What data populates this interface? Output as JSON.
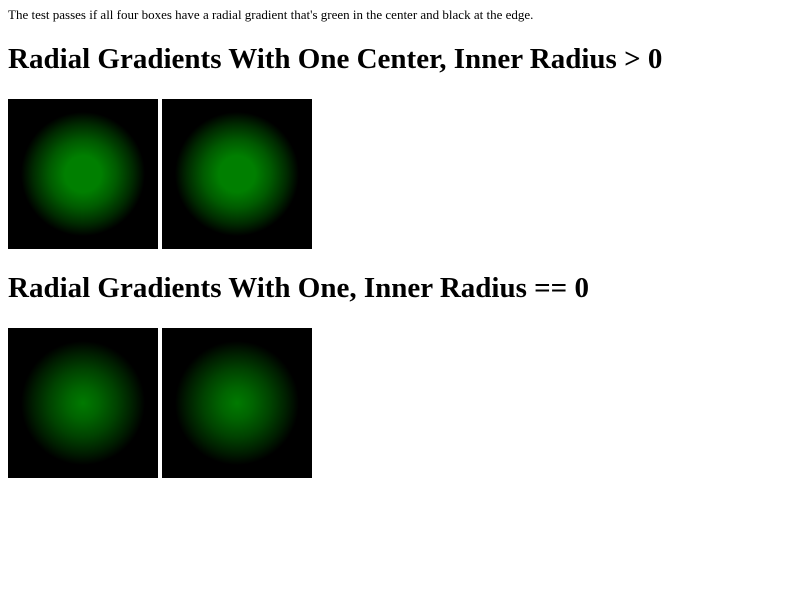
{
  "intro_text": "The test passes if all four boxes have a radial gradient that's green in the center and black at the edge.",
  "sections": [
    {
      "heading": "Radial Gradients With One Center, Inner Radius > 0"
    },
    {
      "heading": "Radial Gradients With One, Inner Radius == 0"
    }
  ],
  "colors": {
    "background": "#ffffff",
    "gradient_center": "#007f00",
    "gradient_edge": "#000000"
  }
}
